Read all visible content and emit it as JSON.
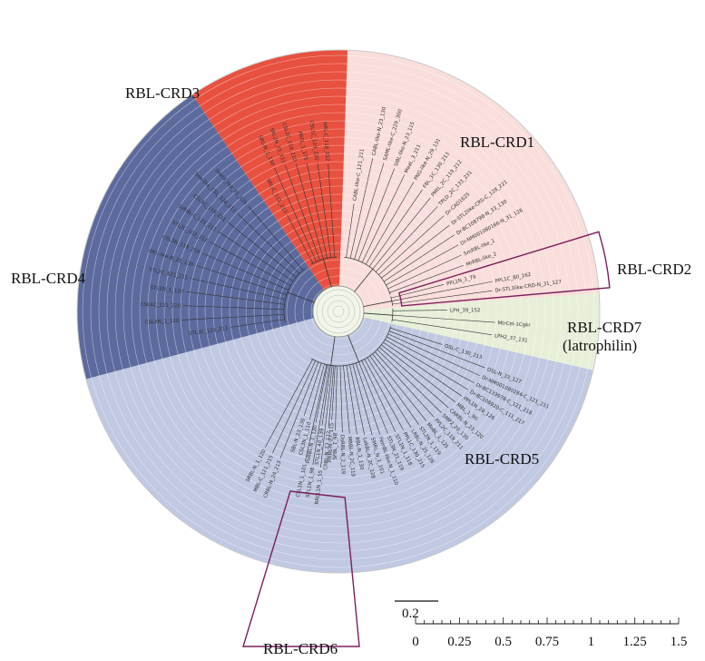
{
  "clade_labels": {
    "crd1": "RBL-CRD1",
    "crd2": "RBL-CRD2",
    "crd3": "RBL-CRD3",
    "crd4": "RBL-CRD4",
    "crd5": "RBL-CRD5",
    "crd6": "RBL-CRD6",
    "crd7_line1": "RBL-CRD7",
    "crd7_line2": "(latrophilin)"
  },
  "clade_colors": {
    "crd1": "#f9dedb",
    "crd3": "#e8513f",
    "crd4": "#5c6a9e",
    "crd5": "#c0c8e2",
    "crd7": "#e7efd9",
    "outline": "#7b1f5c"
  },
  "scale_bar": {
    "value": "0.2"
  },
  "axis": {
    "ticks": [
      "0",
      "0.25",
      "0.5",
      "0.75",
      "1",
      "1.25",
      "1.5"
    ]
  },
  "leaf_labels": {
    "crd1": [
      "CABL-like-C_121_211",
      "CABL-like-N_23_130",
      "SAML-like-C_229_300",
      "SIBL-like-N_23_115",
      "MeaL_3_211",
      "PNG-like-N_29_131",
      "FBL_1C_130_213",
      "PMtL_2C_119_212",
      "TPLD_2C_133_231",
      "Dr-CAD1625",
      "Dr-STL2like-CRS-C_128_221",
      "Dr-BC108798-N_33_130",
      "Dr-NM001080166-N_31_126",
      "SmRBL-like_1",
      "MrRBL-like_2"
    ],
    "crd2": [
      "PPL1N_1_79",
      "PPL1C_80_162",
      "Dr-STL3like-CRD-N_31_127"
    ],
    "crd3": [
      "SRL-C_111_213",
      "SRL-N_1_130",
      "SRL2N_23_111",
      "CSL2C_118_210",
      "PRFL_1_175",
      "CSL1C_129_220",
      "NRL-C_118_212"
    ],
    "crd4": [
      "STL3C_121_211",
      "CSL3N_1_120",
      "CSL4C_121_220",
      "STL2N_1_120",
      "STL2C_121_215",
      "OKL-like-N_21_130",
      "CSL3N_118_210",
      "STL2C_102_212",
      "SvRBL-C_121_211",
      "CSL1C_118_211",
      "Sea-like_CSL_128_211",
      "Seatil_like_21_125"
    ],
    "crd5": [
      "OSL-C_130_213",
      "OSL-N_33_127",
      "Dr-NM001080284-C_121_211",
      "Dr-BC133978-C_121_218",
      "Dr-BC108920-C_111_217",
      "PPL1N_28_126",
      "MBL_1_90",
      "CARBL-N_23_120",
      "SMP2_20_130",
      "PPL2C_119_211",
      "MoBL_1_125",
      "STL2N_1_119",
      "LRBL-N_25_126",
      "PPL1C_130_215",
      "STL1N_1_118",
      "STL3N_21_119",
      "FemBL-like-N_1_110",
      "SMRL_N_1_101",
      "LakBL-N_2C_128",
      "RBL-N_1_130",
      "MRBL-N_2C_119",
      "DsRBL-N_2_119",
      "SFBL_1_98",
      "ChBL-N_23_112",
      "STL1N_40_139",
      "PoRBL-N_1_120",
      "CSL3N_1_110",
      "SBL-N_23_130",
      "CRBL-N_24_213",
      "MBL-C_121_215",
      "SRBL-N_1_120"
    ],
    "crd6": [
      "RRBL-N_27_115",
      "RRCL1N_1_55",
      "STL1N_1_98",
      "CSL1N_1_101"
    ],
    "crd7": [
      "LPH_39_152",
      "MtrCel-1Cgkr",
      "LPH2_37_131"
    ]
  }
}
